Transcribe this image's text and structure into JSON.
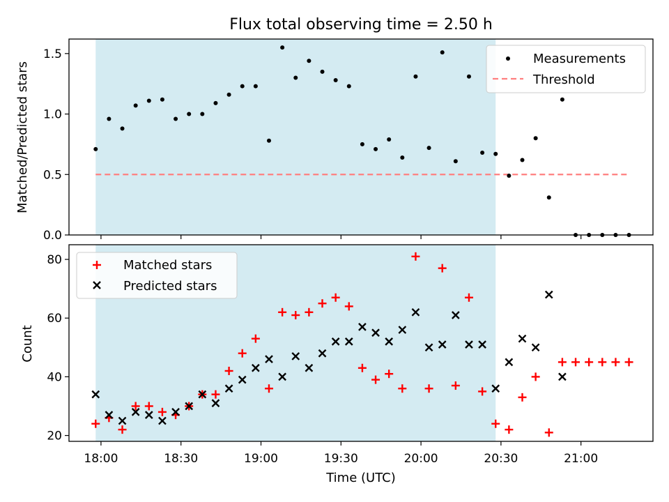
{
  "chart_data": [
    {
      "type": "scatter",
      "title": "Flux total observing time = 2.50 h",
      "xlabel": "",
      "ylabel": "Matched/Predicted stars",
      "ylim": [
        0,
        1.62
      ],
      "yticks": [
        "0.0",
        "0.5",
        "1.0",
        "1.5"
      ],
      "xlim": [
        "17:48",
        "21:27"
      ],
      "shaded_span": [
        "17:58",
        "20:28"
      ],
      "shade_color": "#add8e6",
      "legend_position": "top-right",
      "x": [
        "17:58",
        "18:03",
        "18:08",
        "18:13",
        "18:18",
        "18:23",
        "18:28",
        "18:33",
        "18:38",
        "18:43",
        "18:48",
        "18:53",
        "18:58",
        "19:03",
        "19:08",
        "19:13",
        "19:18",
        "19:23",
        "19:28",
        "19:33",
        "19:38",
        "19:43",
        "19:48",
        "19:53",
        "19:58",
        "20:03",
        "20:08",
        "20:13",
        "20:18",
        "20:23",
        "20:28",
        "20:33",
        "20:38",
        "20:43",
        "20:48",
        "20:53",
        "20:58",
        "21:03",
        "21:08",
        "21:13",
        "21:18"
      ],
      "series": [
        {
          "name": "Measurements",
          "marker": "dot",
          "color": "#000000",
          "values": [
            0.71,
            0.96,
            0.88,
            1.07,
            1.11,
            1.12,
            0.96,
            1.0,
            1.0,
            1.09,
            1.16,
            1.23,
            1.23,
            0.78,
            1.55,
            1.3,
            1.44,
            1.35,
            1.28,
            1.23,
            0.75,
            0.71,
            0.79,
            0.64,
            1.31,
            0.72,
            1.51,
            0.61,
            1.31,
            0.68,
            0.67,
            0.49,
            0.62,
            0.8,
            0.31,
            1.12,
            0.0,
            0.0,
            0.0,
            0.0,
            0.0
          ]
        },
        {
          "name": "Threshold",
          "marker": "dashed-line",
          "color": "#ff7f7f",
          "value": 0.5
        }
      ]
    },
    {
      "type": "scatter",
      "title": "",
      "xlabel": "Time (UTC)",
      "ylabel": "Count",
      "ylim": [
        18,
        85
      ],
      "yticks": [
        "20",
        "40",
        "60",
        "80"
      ],
      "xticks": [
        "18:00",
        "18:30",
        "19:00",
        "19:30",
        "20:00",
        "20:30",
        "21:00"
      ],
      "xlim": [
        "17:48",
        "21:27"
      ],
      "shaded_span": [
        "17:58",
        "20:28"
      ],
      "shade_color": "#add8e6",
      "legend_position": "top-left",
      "series": [
        {
          "name": "Matched stars",
          "marker": "plus",
          "color": "#ff0000",
          "x": [
            "17:58",
            "18:03",
            "18:08",
            "18:13",
            "18:18",
            "18:23",
            "18:28",
            "18:33",
            "18:38",
            "18:43",
            "18:48",
            "18:53",
            "18:58",
            "19:03",
            "19:08",
            "19:13",
            "19:18",
            "19:23",
            "19:28",
            "19:33",
            "19:38",
            "19:43",
            "19:48",
            "19:53",
            "19:58",
            "20:03",
            "20:08",
            "20:13",
            "20:18",
            "20:23",
            "20:28",
            "20:33",
            "20:38",
            "20:43",
            "20:48",
            "20:53",
            "20:58",
            "21:03",
            "21:08",
            "21:13",
            "21:18"
          ],
          "values": [
            24,
            26,
            22,
            30,
            30,
            28,
            27,
            30,
            34,
            34,
            42,
            48,
            53,
            36,
            62,
            61,
            62,
            65,
            67,
            64,
            43,
            39,
            41,
            36,
            81,
            36,
            77,
            37,
            67,
            35,
            24,
            22,
            33,
            40,
            21,
            45,
            45,
            45,
            45,
            45,
            45
          ]
        },
        {
          "name": "Predicted stars",
          "marker": "x",
          "color": "#000000",
          "x": [
            "17:58",
            "18:03",
            "18:08",
            "18:13",
            "18:18",
            "18:23",
            "18:28",
            "18:33",
            "18:38",
            "18:43",
            "18:48",
            "18:53",
            "18:58",
            "19:03",
            "19:08",
            "19:13",
            "19:18",
            "19:23",
            "19:28",
            "19:33",
            "19:38",
            "19:43",
            "19:48",
            "19:53",
            "19:58",
            "20:03",
            "20:08",
            "20:13",
            "20:18",
            "20:23",
            "20:28",
            "20:33",
            "20:38",
            "20:43",
            "20:48",
            "20:53"
          ],
          "values": [
            34,
            27,
            25,
            28,
            27,
            25,
            28,
            30,
            34,
            31,
            36,
            39,
            43,
            46,
            40,
            47,
            43,
            48,
            52,
            52,
            57,
            55,
            52,
            56,
            62,
            50,
            51,
            61,
            51,
            51,
            36,
            45,
            53,
            50,
            68,
            40
          ]
        }
      ]
    }
  ]
}
